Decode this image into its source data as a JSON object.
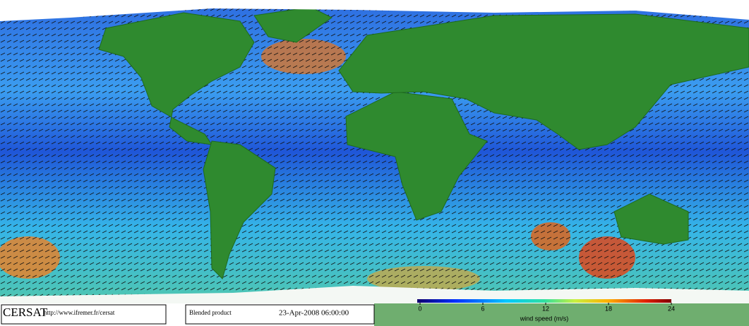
{
  "footer": {
    "logo": "CERSAT",
    "url": "http://www.ifremer.fr/cersat",
    "product": "Blended product",
    "timestamp": "23-Apr-2008 06:00:00"
  },
  "colorbar": {
    "label": "wind speed (m/s)",
    "lim": [
      0,
      24
    ],
    "ticks": [
      0,
      6,
      12,
      18,
      24
    ]
  }
}
